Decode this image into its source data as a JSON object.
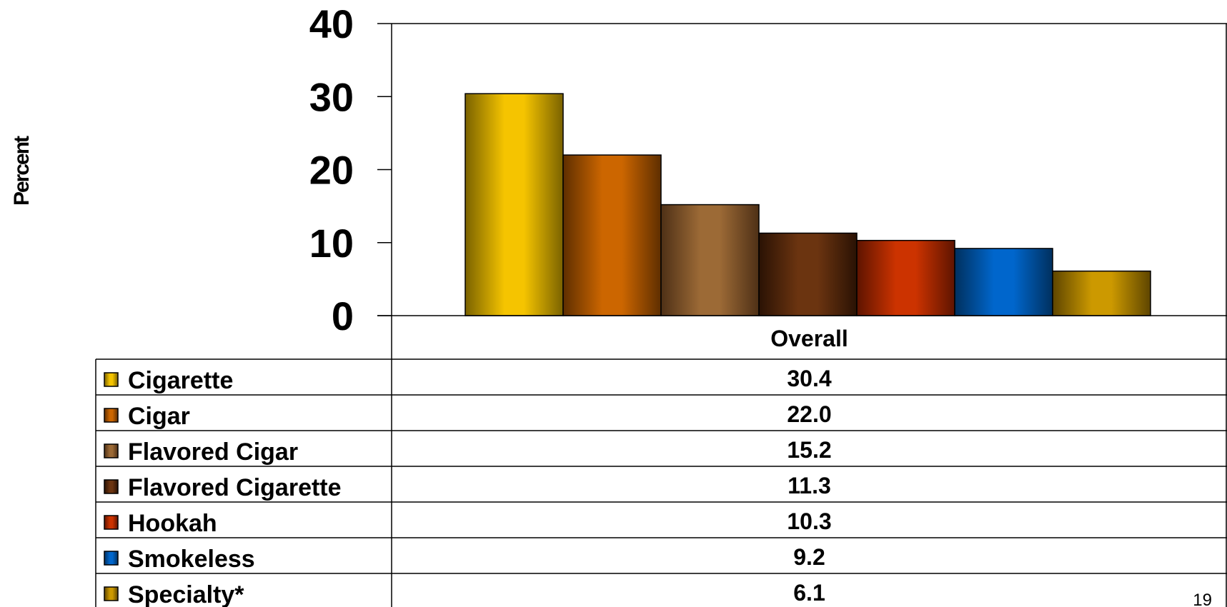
{
  "chart_data": {
    "type": "bar",
    "ylabel": "Percent",
    "ylim": [
      0,
      40
    ],
    "yticks": [
      0,
      10,
      20,
      30,
      40
    ],
    "categories": [
      "Overall"
    ],
    "series": [
      {
        "name": "Cigarette",
        "values": [
          30.4
        ],
        "display": "30.4",
        "color": "#F5C400",
        "edge": "#7A6200"
      },
      {
        "name": "Cigar",
        "values": [
          22.0
        ],
        "display": "22.0",
        "color": "#CC6600",
        "edge": "#5E2E00"
      },
      {
        "name": "Flavored Cigar",
        "values": [
          15.2
        ],
        "display": "15.2",
        "color": "#9C6A36",
        "edge": "#4E3016"
      },
      {
        "name": "Flavored Cigarette",
        "values": [
          11.3
        ],
        "display": "11.3",
        "color": "#6B3410",
        "edge": "#2A1204"
      },
      {
        "name": "Hookah",
        "values": [
          10.3
        ],
        "display": "10.3",
        "color": "#CC3300",
        "edge": "#5E1400"
      },
      {
        "name": "Smokeless",
        "values": [
          9.2
        ],
        "display": "9.2",
        "color": "#0066CC",
        "edge": "#00305E"
      },
      {
        "name": "Specialty*",
        "values": [
          6.1
        ],
        "display": "6.1",
        "color": "#CC9900",
        "edge": "#5E4500"
      }
    ],
    "grid": false,
    "legend": "data-table"
  },
  "page_number": "19"
}
